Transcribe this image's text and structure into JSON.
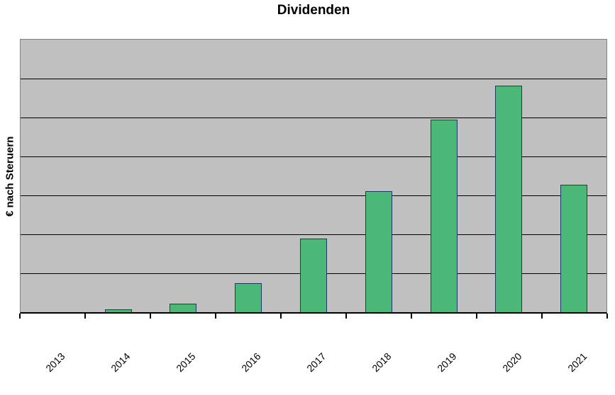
{
  "title": "Dividenden",
  "y_axis": {
    "label": "€ nach Steruern",
    "tick_labels_visible": false
  },
  "x_axis": {
    "tick_labels_rotation_deg": -45
  },
  "chart_data": {
    "type": "bar",
    "title": "Dividenden",
    "xlabel": "",
    "ylabel": "€ nach Steruern",
    "categories": [
      "2013",
      "2014",
      "2015",
      "2016",
      "2017",
      "2018",
      "2019",
      "2020",
      "2021"
    ],
    "values": [
      0,
      0.08,
      0.22,
      0.74,
      1.9,
      3.11,
      4.95,
      5.82,
      3.28
    ],
    "value_scale_note": "no y tick labels visible; values estimated in gridline units (1 unit = 1 gridline interval)",
    "ylim": [
      0,
      7
    ],
    "gridline_interval": 1,
    "grid": true,
    "legend": "none",
    "colors": {
      "bar_fill": "#4CB878",
      "bar_border": "#1F3864",
      "plot_background": "#C0C0C0",
      "gridline": "#000000",
      "plot_border": "#808080",
      "axis_line": "#000000",
      "page_background": "#FFFFFF",
      "text": "#000000"
    }
  }
}
